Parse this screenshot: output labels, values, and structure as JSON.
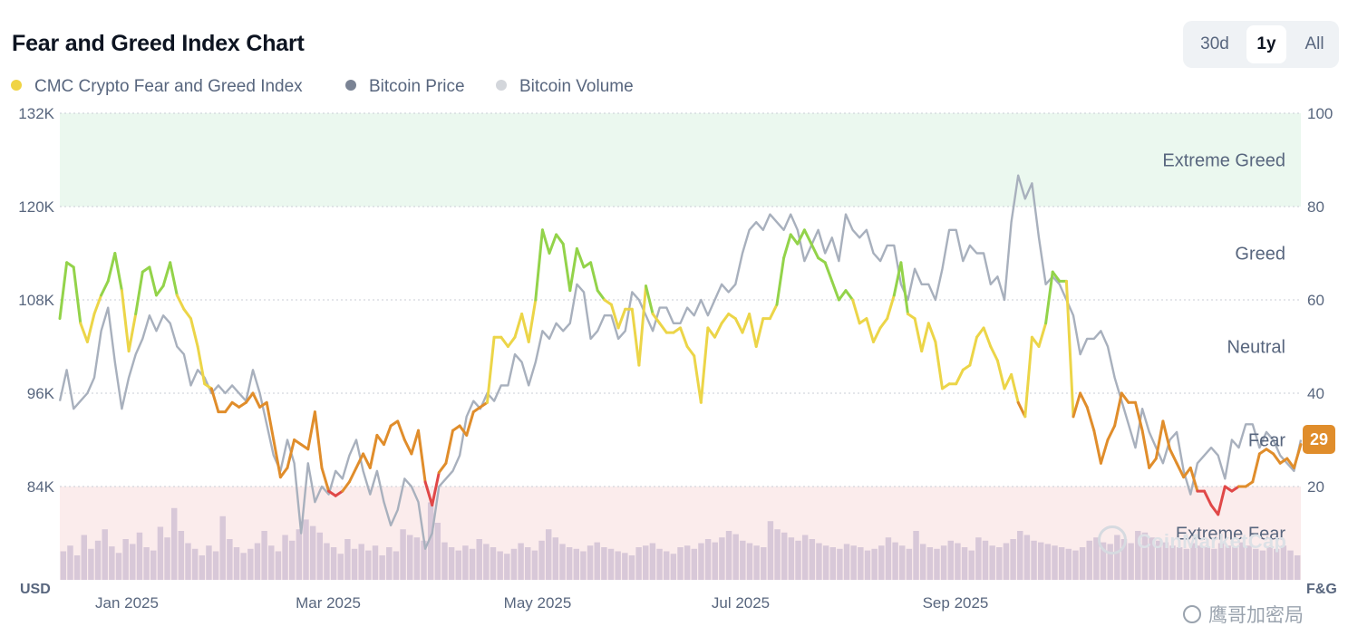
{
  "header": {
    "title": "Fear and Greed Index Chart"
  },
  "range_tabs": [
    {
      "label": "30d",
      "active": false
    },
    {
      "label": "1y",
      "active": true
    },
    {
      "label": "All",
      "active": false
    }
  ],
  "colors": {
    "extreme_greed": "#93d34a",
    "greed": "#93d34a",
    "neutral": "#ecd548",
    "fear": "#e08d2b",
    "extreme_fear": "#e04848",
    "price": "#a8b0bd",
    "volume": "#d8c8d8",
    "zone_greed_bg": "#ebf8ef",
    "zone_fear_bg": "#fbecec",
    "legend_index": "#f0d444",
    "legend_price": "#7a8394",
    "legend_volume": "#d3d6db"
  },
  "watermark": {
    "brand": "CoinMarketCap",
    "overlay": "鹰哥加密局"
  },
  "chart_data": {
    "type": "line",
    "title": "Fear and Greed Index Chart",
    "legend": [
      {
        "name": "CMC Crypto Fear and Greed Index",
        "color_key": "legend_index"
      },
      {
        "name": "Bitcoin Price",
        "color_key": "legend_price"
      },
      {
        "name": "Bitcoin Volume",
        "color_key": "legend_volume"
      }
    ],
    "left_axis": {
      "label": "USD",
      "ticks": [
        "132K",
        "120K",
        "108K",
        "96K",
        "84K"
      ],
      "range": [
        72000,
        132000
      ]
    },
    "right_axis": {
      "label": "F&G",
      "ticks": [
        "100",
        "80",
        "60",
        "40",
        "20"
      ],
      "range": [
        0,
        100
      ]
    },
    "x_axis": {
      "ticks": [
        "Jan 2025",
        "Mar 2025",
        "May 2025",
        "Jul 2025",
        "Sep 2025"
      ]
    },
    "zones": [
      {
        "label": "Extreme Greed",
        "from": 80,
        "to": 100
      },
      {
        "label": "Greed",
        "from": 60,
        "to": 80
      },
      {
        "label": "Neutral",
        "from": 40,
        "to": 60
      },
      {
        "label": "Fear",
        "from": 20,
        "to": 40
      },
      {
        "label": "Extreme Fear",
        "from": 0,
        "to": 20
      }
    ],
    "current_value": "29",
    "fg_index": [
      56,
      68,
      67,
      55,
      51,
      57,
      61,
      64,
      70,
      62,
      49,
      57,
      66,
      67,
      61,
      63,
      68,
      61,
      58,
      56,
      50,
      42,
      41,
      36,
      36,
      38,
      37,
      38,
      40,
      37,
      38,
      30,
      22,
      24,
      30,
      29,
      28,
      36,
      24,
      19,
      18,
      19,
      21,
      24,
      27,
      24,
      31,
      29,
      33,
      34,
      30,
      27,
      32,
      21,
      16,
      23,
      25,
      32,
      33,
      31,
      36,
      37,
      38,
      52,
      52,
      50,
      52,
      57,
      51,
      60,
      75,
      70,
      74,
      72,
      62,
      71,
      67,
      68,
      62,
      60,
      59,
      54,
      58,
      58,
      46,
      63,
      57,
      55,
      53,
      53,
      54,
      50,
      48,
      38,
      54,
      52,
      55,
      57,
      56,
      53,
      57,
      50,
      56,
      56,
      59,
      69,
      74,
      72,
      75,
      72,
      69,
      68,
      64,
      60,
      62,
      60,
      55,
      56,
      51,
      54,
      56,
      61,
      68,
      57,
      56,
      49,
      55,
      51,
      41,
      42,
      42,
      45,
      46,
      52,
      54,
      50,
      47,
      41,
      44,
      38,
      35,
      52,
      50,
      55,
      66,
      64,
      64,
      35,
      40,
      37,
      32,
      25,
      30,
      33,
      40,
      38,
      38,
      32,
      24,
      26,
      34,
      28,
      25,
      22,
      24,
      19,
      19,
      16,
      14,
      20,
      19,
      20,
      20,
      21,
      27,
      28,
      27,
      25,
      26,
      24,
      29
    ],
    "btc_price_k": [
      95,
      99,
      94,
      95,
      96,
      98,
      104,
      107,
      100,
      94,
      98,
      101,
      103,
      106,
      104,
      106,
      105,
      102,
      101,
      97,
      99,
      98,
      96,
      97,
      96,
      97,
      96,
      95,
      99,
      96,
      92,
      88,
      86,
      90,
      87,
      78,
      87,
      82,
      84,
      83,
      86,
      85,
      88,
      90,
      86,
      83,
      86,
      82,
      79,
      81,
      85,
      84,
      82,
      76,
      78,
      84,
      85,
      86,
      88,
      93,
      95,
      94,
      96,
      95,
      97,
      97,
      101,
      100,
      97,
      100,
      104,
      103,
      105,
      104,
      105,
      110,
      109,
      103,
      104,
      106,
      106,
      103,
      104,
      109,
      108,
      106,
      104,
      107,
      107,
      105,
      105,
      107,
      106,
      108,
      106,
      108,
      110,
      109,
      110,
      114,
      117,
      118,
      117,
      119,
      118,
      117,
      119,
      117,
      113,
      115,
      117,
      114,
      116,
      113,
      119,
      117,
      116,
      117,
      114,
      113,
      115,
      115,
      110,
      108,
      112,
      110,
      110,
      108,
      112,
      117,
      117,
      113,
      115,
      114,
      114,
      110,
      111,
      108,
      118,
      124,
      121,
      123,
      116,
      110,
      111,
      110,
      108,
      106,
      101,
      103,
      103,
      104,
      102,
      98,
      95,
      92,
      89,
      94,
      91,
      89,
      87,
      90,
      91,
      86,
      83,
      87,
      88,
      89,
      88,
      85,
      90,
      89,
      92,
      92,
      89,
      91,
      90,
      88,
      87,
      86,
      90
    ],
    "volume_rel": [
      0.35,
      0.42,
      0.3,
      0.55,
      0.38,
      0.48,
      0.62,
      0.41,
      0.33,
      0.5,
      0.44,
      0.58,
      0.4,
      0.36,
      0.65,
      0.52,
      0.88,
      0.6,
      0.45,
      0.38,
      0.3,
      0.42,
      0.35,
      0.78,
      0.5,
      0.4,
      0.33,
      0.38,
      0.45,
      0.6,
      0.42,
      0.35,
      0.55,
      0.48,
      0.62,
      0.74,
      0.66,
      0.58,
      0.45,
      0.4,
      0.32,
      0.5,
      0.38,
      0.44,
      0.36,
      0.42,
      0.3,
      0.4,
      0.35,
      0.62,
      0.55,
      0.52,
      0.48,
      0.95,
      0.7,
      0.46,
      0.4,
      0.36,
      0.42,
      0.38,
      0.5,
      0.44,
      0.4,
      0.35,
      0.32,
      0.38,
      0.45,
      0.4,
      0.36,
      0.48,
      0.62,
      0.52,
      0.44,
      0.4,
      0.38,
      0.35,
      0.42,
      0.46,
      0.4,
      0.38,
      0.35,
      0.33,
      0.3,
      0.4,
      0.42,
      0.45,
      0.38,
      0.35,
      0.32,
      0.4,
      0.42,
      0.38,
      0.45,
      0.5,
      0.46,
      0.52,
      0.6,
      0.56,
      0.48,
      0.45,
      0.42,
      0.4,
      0.72,
      0.62,
      0.58,
      0.52,
      0.48,
      0.55,
      0.5,
      0.45,
      0.42,
      0.4,
      0.38,
      0.44,
      0.42,
      0.4,
      0.36,
      0.38,
      0.42,
      0.52,
      0.46,
      0.42,
      0.38,
      0.6,
      0.44,
      0.4,
      0.38,
      0.42,
      0.48,
      0.45,
      0.4,
      0.36,
      0.52,
      0.48,
      0.42,
      0.4,
      0.45,
      0.5,
      0.6,
      0.55,
      0.48,
      0.46,
      0.44,
      0.42,
      0.4,
      0.38,
      0.36,
      0.4,
      0.48,
      0.52,
      0.46,
      0.44,
      0.55,
      0.5,
      0.45,
      0.6,
      0.58,
      0.52,
      0.48,
      0.46,
      0.42,
      0.4,
      0.38,
      0.45,
      0.42,
      0.4,
      0.38,
      0.45,
      0.42,
      0.4,
      0.46,
      0.42,
      0.38,
      0.36,
      0.4,
      0.38,
      0.42,
      0.36,
      0.3
    ]
  }
}
